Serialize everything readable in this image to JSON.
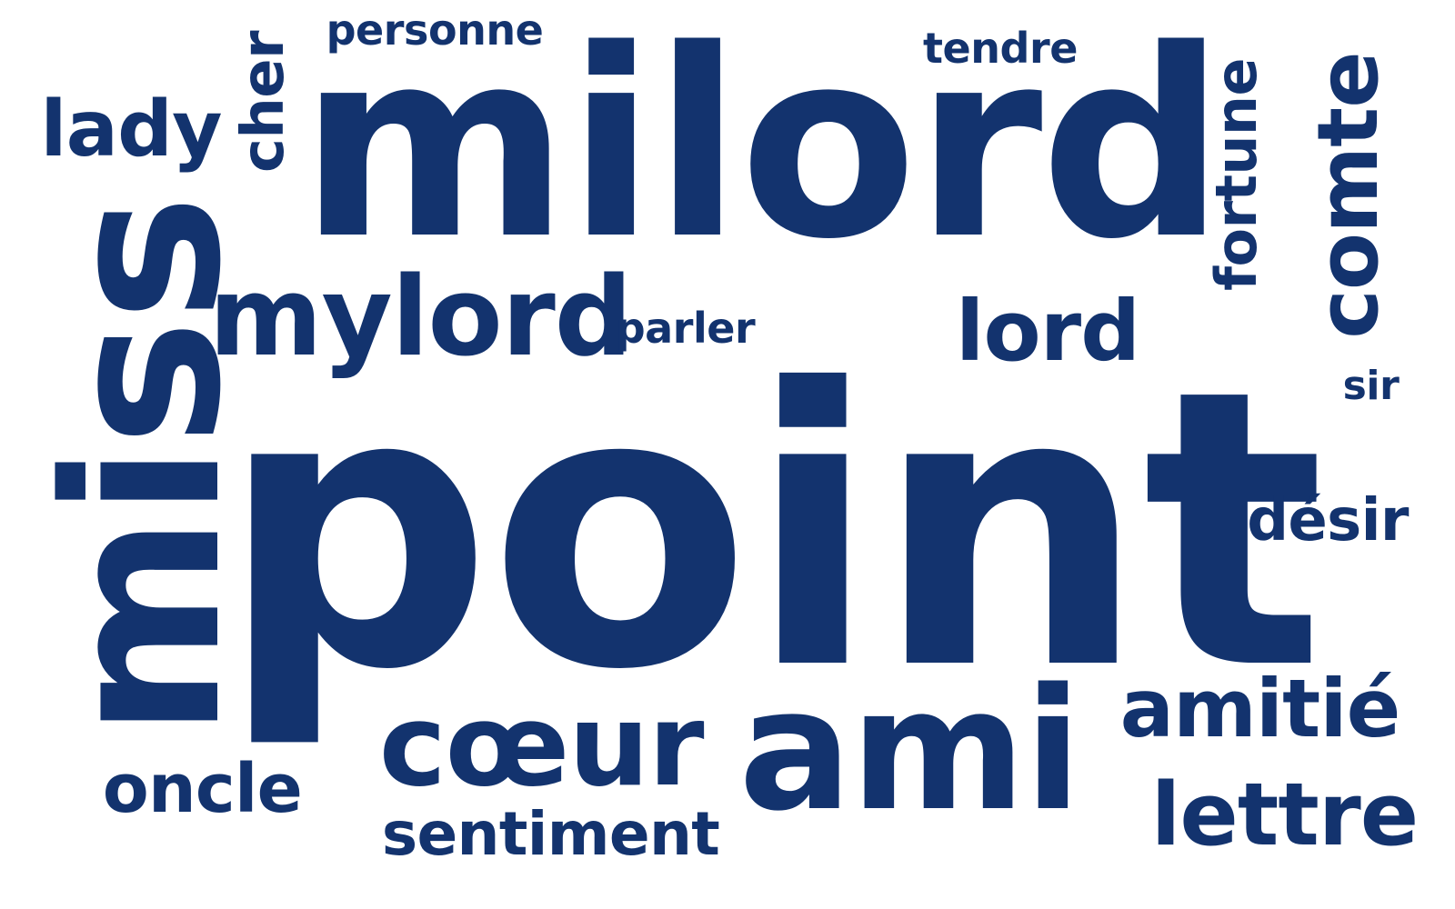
{
  "color": "#13336E",
  "words": {
    "point": "point",
    "milord": "milord",
    "miss": "miss",
    "mylord": "mylord",
    "ami": "ami",
    "coeur": "cœur",
    "lord": "lord",
    "comte": "comte",
    "fortune": "fortune",
    "lettre": "lettre",
    "amitie": "amitié",
    "lady": "lady",
    "cher": "cher",
    "oncle": "oncle",
    "desir": "désir",
    "sentiment": "sentiment",
    "personne": "personne",
    "tendre": "tendre",
    "parler": "parler",
    "sir": "sir"
  }
}
